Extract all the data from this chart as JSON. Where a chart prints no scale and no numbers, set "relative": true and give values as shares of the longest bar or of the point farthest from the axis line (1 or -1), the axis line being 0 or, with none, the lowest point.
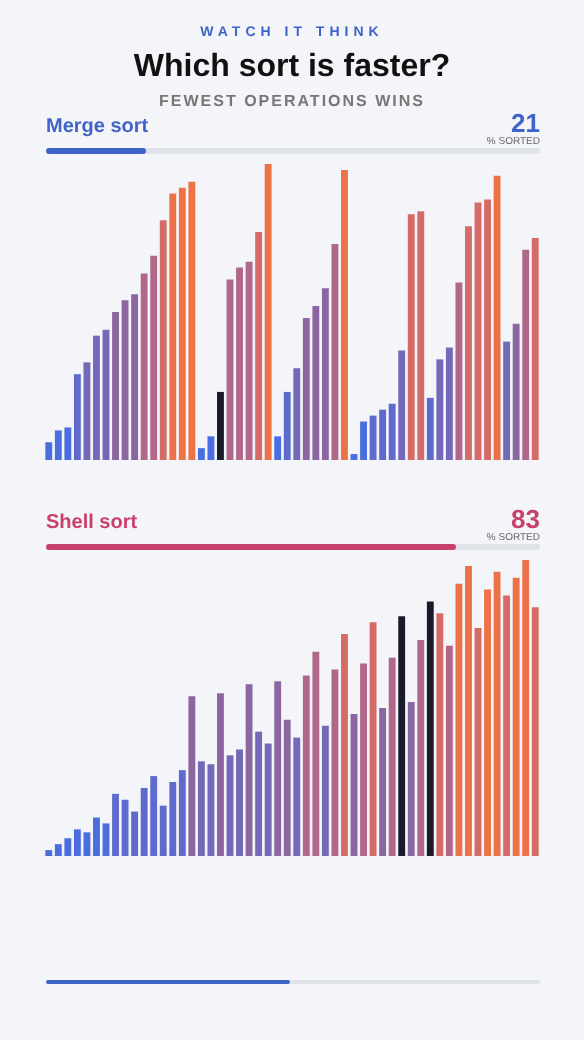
{
  "chart_data": [
    {
      "type": "bar",
      "title": "Merge sort",
      "relative": true,
      "color": "#3f63c8",
      "annotations": [
        "WATCH IT THINK",
        "Which sort is faster?",
        "FEWEST OPERATIONS WINS",
        "21",
        "% SORTED"
      ],
      "categories": [
        null,
        null,
        null,
        null,
        null,
        null,
        null,
        null,
        null,
        null,
        null,
        null,
        null,
        null,
        null,
        null,
        null,
        null,
        null,
        null,
        null,
        null,
        null,
        null,
        null,
        null,
        null,
        null,
        null,
        null,
        null,
        null,
        null,
        null,
        null,
        null,
        null,
        null,
        null,
        null,
        null,
        null,
        null,
        null,
        null,
        null,
        null,
        null,
        null,
        null,
        null,
        null
      ],
      "values": [
        0.06,
        0.1,
        0.11,
        0.29,
        0.33,
        0.42,
        0.44,
        0.5,
        0.54,
        0.56,
        0.63,
        0.69,
        0.81,
        0.9,
        0.92,
        0.94,
        0.04,
        0.08,
        0.23,
        0.61,
        0.65,
        0.67,
        0.77,
        1,
        0.08,
        0.23,
        0.31,
        0.48,
        0.52,
        0.58,
        0.73,
        0.98,
        0.02,
        0.13,
        0.15,
        0.17,
        0.19,
        0.37,
        0.83,
        0.84,
        0.21,
        0.34,
        0.38,
        0.6,
        0.79,
        0.87,
        0.88,
        0.96,
        0.4,
        0.46,
        0.71,
        0.75
      ],
      "colors": [
        "#4a6ee0",
        "#4a6ee0",
        "#4a6ee0",
        "#5f6bcc",
        "#7468b8",
        "#7468b8",
        "#7468b8",
        "#8c66a0",
        "#8c66a0",
        "#8c66a0",
        "#b0678a",
        "#b0678a",
        "#d56b66",
        "#ee7248",
        "#ee7248",
        "#ee7248",
        "#4a6ee0",
        "#4a6ee0",
        "#1a1a2a",
        "#b0678a",
        "#b0678a",
        "#b0678a",
        "#d56b66",
        "#ee7248",
        "#4a6ee0",
        "#5f6bcc",
        "#7468b8",
        "#8c66a0",
        "#8c66a0",
        "#8c66a0",
        "#b0678a",
        "#ee7248",
        "#4a6ee0",
        "#4a6ee0",
        "#5f6bcc",
        "#5f6bcc",
        "#5f6bcc",
        "#7468b8",
        "#d56b66",
        "#d56b66",
        "#5f6bcc",
        "#7468b8",
        "#7468b8",
        "#b0678a",
        "#d56b66",
        "#d56b66",
        "#d56b66",
        "#ee7248",
        "#7468b8",
        "#8c66a0",
        "#b0678a",
        "#d56b66"
      ]
    },
    {
      "type": "bar",
      "title": "Shell sort",
      "relative": true,
      "color": "#c9406c",
      "annotations": [
        "83",
        "% SORTED"
      ],
      "categories": [
        null,
        null,
        null,
        null,
        null,
        null,
        null,
        null,
        null,
        null,
        null,
        null,
        null,
        null,
        null,
        null,
        null,
        null,
        null,
        null,
        null,
        null,
        null,
        null,
        null,
        null,
        null,
        null,
        null,
        null,
        null,
        null,
        null,
        null,
        null,
        null,
        null,
        null,
        null,
        null,
        null,
        null,
        null,
        null,
        null,
        null,
        null,
        null,
        null,
        null,
        null,
        null
      ],
      "values": [
        0.02,
        0.04,
        0.06,
        0.09,
        0.08,
        0.13,
        0.11,
        0.21,
        0.19,
        0.15,
        0.23,
        0.27,
        0.17,
        0.25,
        0.29,
        0.54,
        0.32,
        0.31,
        0.55,
        0.34,
        0.36,
        0.58,
        0.42,
        0.38,
        0.59,
        0.46,
        0.4,
        0.61,
        0.69,
        0.44,
        0.63,
        0.75,
        0.48,
        0.65,
        0.79,
        0.5,
        0.67,
        0.81,
        0.52,
        0.73,
        0.86,
        0.82,
        0.71,
        0.92,
        0.98,
        0.77,
        0.9,
        0.96,
        0.88,
        0.94,
        1,
        0.84
      ],
      "colors": [
        "#4a6ee0",
        "#4a6ee0",
        "#4a6ee0",
        "#4a6ee0",
        "#4a6ee0",
        "#4a6ee0",
        "#4a6ee0",
        "#5f6bcc",
        "#5f6bcc",
        "#5f6bcc",
        "#5f6bcc",
        "#5f6bcc",
        "#5f6bcc",
        "#5f6bcc",
        "#5f6bcc",
        "#8c66a0",
        "#7468b8",
        "#7468b8",
        "#8c66a0",
        "#7468b8",
        "#7468b8",
        "#8c66a0",
        "#7468b8",
        "#7468b8",
        "#8c66a0",
        "#8c66a0",
        "#7468b8",
        "#b0678a",
        "#b0678a",
        "#7468b8",
        "#b0678a",
        "#d56b66",
        "#8c66a0",
        "#b0678a",
        "#d56b66",
        "#8c66a0",
        "#b0678a",
        "#1a1a2a",
        "#8c66a0",
        "#b0678a",
        "#1a1a2a",
        "#d56b66",
        "#b0678a",
        "#ee7248",
        "#ee7248",
        "#d56b66",
        "#ee7248",
        "#ee7248",
        "#d56b66",
        "#ee7248",
        "#ee7248",
        "#d56b66"
      ]
    }
  ]
}
